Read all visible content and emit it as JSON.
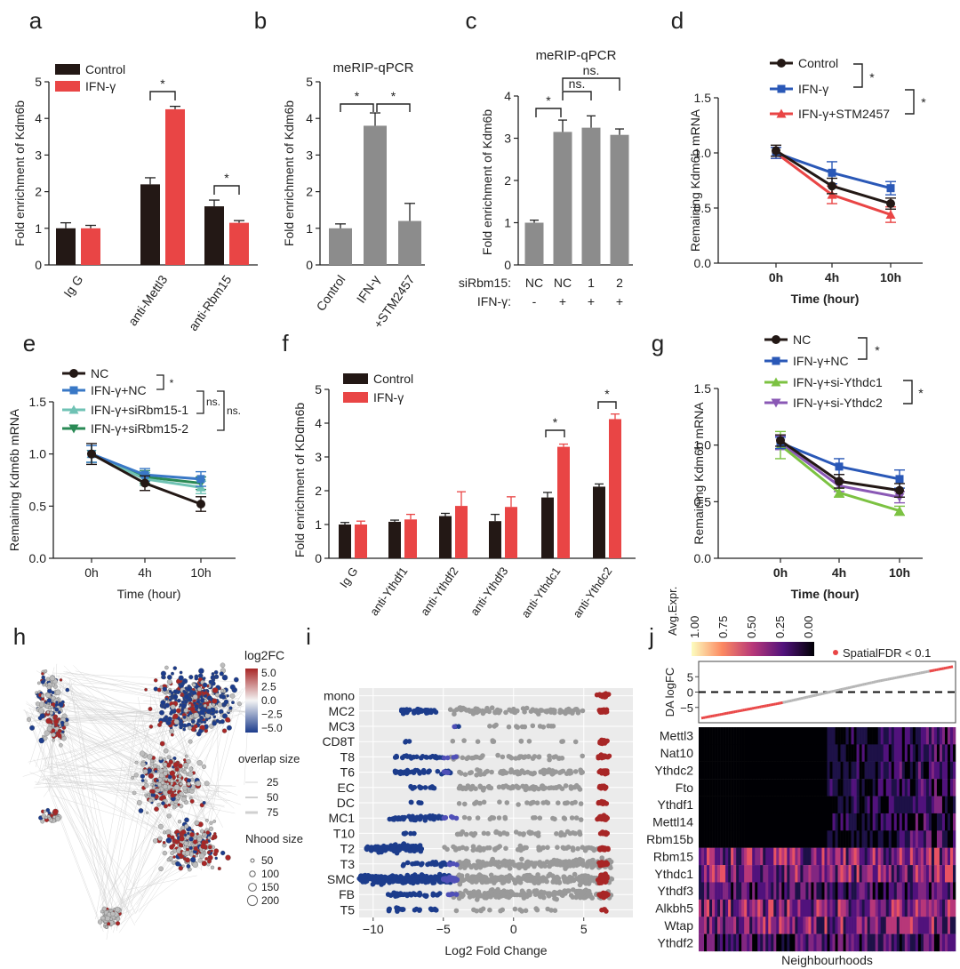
{
  "colors": {
    "black": "#231815",
    "red": "#e94545",
    "gray": "#8c8c8c",
    "blue": "#2a58b7",
    "lightblue": "#3978c6",
    "teal": "#6fc2b4",
    "green": "#2a8a55",
    "lime": "#7cc242",
    "purple": "#8a58b5",
    "dred": "#a82626",
    "dblue": "#1c3c8c"
  },
  "chart_data": [
    {
      "id": "a",
      "panel_label": "a",
      "type": "bar",
      "title": "",
      "ylabel": "Fold enrichment of Kdm6b",
      "ylim": [
        0,
        5
      ],
      "yticks": [
        "0",
        "1",
        "2",
        "3",
        "4",
        "5"
      ],
      "categories": [
        "Ig G",
        "anti-Mettl3",
        "anti-Rbm15"
      ],
      "series": [
        {
          "name": "Control",
          "values": [
            1.0,
            2.2,
            1.6
          ],
          "errors": [
            0.15,
            0.18,
            0.17
          ]
        },
        {
          "name": "IFN-γ",
          "values": [
            1.0,
            4.25,
            1.15
          ],
          "errors": [
            0.08,
            0.08,
            0.06
          ]
        }
      ],
      "sig": [
        "*",
        "*"
      ]
    },
    {
      "id": "b",
      "panel_label": "b",
      "type": "bar",
      "title": "meRIP-qPCR",
      "ylabel": "Fold enrichment of Kdm6b",
      "ylim": [
        0,
        5
      ],
      "yticks": [
        "0",
        "1",
        "2",
        "3",
        "4",
        "5"
      ],
      "categories": [
        "Control",
        "IFN-γ",
        "+STM2457"
      ],
      "values": [
        1.0,
        3.8,
        1.2
      ],
      "errors": [
        0.12,
        0.35,
        0.48
      ],
      "sig": [
        "*",
        "*"
      ]
    },
    {
      "id": "c",
      "panel_label": "c",
      "type": "bar",
      "title": "meRIP-qPCR",
      "ylabel": "Fold enrichment of Kdm6b",
      "ylim": [
        0,
        4
      ],
      "yticks": [
        "0",
        "1",
        "2",
        "3",
        "4"
      ],
      "categories": [
        "NC",
        "NC",
        "1",
        "2"
      ],
      "values": [
        1.0,
        3.15,
        3.25,
        3.08
      ],
      "errors": [
        0.06,
        0.28,
        0.28,
        0.14
      ],
      "row1_label": "siRbm15:",
      "row2_label": "IFN-γ:",
      "row2": [
        "-",
        "+",
        "+",
        "+"
      ],
      "sig": [
        "*",
        "ns.",
        "ns."
      ]
    },
    {
      "id": "d",
      "panel_label": "d",
      "type": "line",
      "ylabel": "Remaining Kdm6b mRNA",
      "xlabel": "Time (hour)",
      "ylim": [
        0,
        1.5
      ],
      "yticks": [
        "0.0",
        "0.5",
        "1.0",
        "1.5"
      ],
      "x": [
        "0h",
        "4h",
        "10h"
      ],
      "series": [
        {
          "name": "Control",
          "values": [
            1.02,
            0.7,
            0.54
          ],
          "errors": [
            0.05,
            0.07,
            0.05
          ]
        },
        {
          "name": "IFN-γ",
          "values": [
            1.0,
            0.82,
            0.68
          ],
          "errors": [
            0.05,
            0.1,
            0.06
          ]
        },
        {
          "name": "IFN-γ+STM2457",
          "values": [
            1.0,
            0.62,
            0.44
          ],
          "errors": [
            0.05,
            0.08,
            0.07
          ]
        }
      ],
      "sig": [
        "*",
        "*"
      ]
    },
    {
      "id": "e",
      "panel_label": "e",
      "type": "line",
      "ylabel": "Remaining Kdm6b mRNA",
      "xlabel": "Time (hour)",
      "ylim": [
        0,
        1.5
      ],
      "yticks": [
        "0.0",
        "0.5",
        "1.0",
        "1.5"
      ],
      "x": [
        "0h",
        "4h",
        "10h"
      ],
      "series": [
        {
          "name": "NC",
          "values": [
            1.0,
            0.72,
            0.52
          ],
          "errors": [
            0.1,
            0.07,
            0.07
          ]
        },
        {
          "name": "IFN-γ+NC",
          "values": [
            1.0,
            0.8,
            0.76
          ],
          "errors": [
            0.08,
            0.06,
            0.07
          ]
        },
        {
          "name": "IFN-γ+siRbm15-1",
          "values": [
            1.0,
            0.76,
            0.68
          ],
          "errors": [
            0.08,
            0.06,
            0.06
          ]
        },
        {
          "name": "IFN-γ+siRbm15-2",
          "values": [
            1.0,
            0.78,
            0.72
          ],
          "errors": [
            0.08,
            0.06,
            0.06
          ]
        }
      ],
      "sig": [
        "*",
        "ns.",
        "ns."
      ]
    },
    {
      "id": "f",
      "panel_label": "f",
      "type": "bar",
      "ylabel": "Fold enrichment of KDdm6b",
      "ylim": [
        0,
        5
      ],
      "yticks": [
        "0",
        "1",
        "2",
        "3",
        "4",
        "5"
      ],
      "categories": [
        "Ig G",
        "anti-Ythdf1",
        "anti-Ythdf2",
        "anti-Ythdf3",
        "anti-Ythdc1",
        "anti-Ythdc2"
      ],
      "series": [
        {
          "name": "Control",
          "values": [
            1.0,
            1.08,
            1.25,
            1.1,
            1.8,
            2.12
          ],
          "errors": [
            0.06,
            0.05,
            0.08,
            0.2,
            0.15,
            0.08
          ]
        },
        {
          "name": "IFN-γ",
          "values": [
            1.0,
            1.15,
            1.55,
            1.52,
            3.3,
            4.12
          ],
          "errors": [
            0.1,
            0.15,
            0.42,
            0.3,
            0.08,
            0.15
          ]
        }
      ],
      "sig": [
        "*",
        "*"
      ]
    },
    {
      "id": "g",
      "panel_label": "g",
      "type": "line",
      "ylabel": "Remaining Kdm6b mRNA",
      "xlabel": "Time (hour)",
      "ylim": [
        0,
        1.5
      ],
      "yticks": [
        "0.0",
        "0.5",
        "1.0",
        "1.5"
      ],
      "x": [
        "0h",
        "4h",
        "10h"
      ],
      "series": [
        {
          "name": "NC",
          "values": [
            1.04,
            0.68,
            0.6
          ],
          "errors": [
            0.05,
            0.06,
            0.06
          ]
        },
        {
          "name": "IFN-γ+NC",
          "values": [
            1.02,
            0.81,
            0.7
          ],
          "errors": [
            0.05,
            0.07,
            0.08
          ]
        },
        {
          "name": "IFN-γ+si-Ythdc1",
          "values": [
            1.0,
            0.58,
            0.42
          ],
          "errors": [
            0.12,
            0.04,
            0.04
          ]
        },
        {
          "name": "IFN-γ+si-Ythdc2",
          "values": [
            1.02,
            0.64,
            0.54
          ],
          "errors": [
            0.06,
            0.05,
            0.05
          ]
        }
      ],
      "sig": [
        "*",
        "*"
      ]
    },
    {
      "id": "h",
      "panel_label": "h",
      "type": "scatter",
      "title": "",
      "legend_title": "log2FC",
      "colorbar_ticks": [
        "5.0",
        "2.5",
        "0.0",
        "−2.5",
        "−5.0"
      ],
      "overlap_title": "overlap size",
      "overlap_levels": [
        "25",
        "50",
        "75"
      ],
      "nhood_title": "Nhood size",
      "nhood_levels": [
        "50",
        "100",
        "150",
        "200"
      ]
    },
    {
      "id": "i",
      "panel_label": "i",
      "type": "scatter",
      "xlabel": "Log2 Fold Change",
      "xlim": [
        -11,
        8.5
      ],
      "xticks": [
        "−10",
        "−5",
        "0",
        "5"
      ],
      "categories": [
        "mono",
        "MC2",
        "MC3",
        "CD8T",
        "T8",
        "T6",
        "EC",
        "DC",
        "MC1",
        "T10",
        "T2",
        "T3",
        "SMC",
        "FB",
        "T5"
      ]
    },
    {
      "id": "j",
      "panel_label": "j",
      "type": "heatmap",
      "ylabel": "DA logFC",
      "xlabel": "Neighbourhoods",
      "ylim": [
        -10,
        10
      ],
      "yticks": [
        "5",
        "0",
        "−5"
      ],
      "colorbar_title": "Avg.Expr.",
      "colorbar_ticks": [
        "1.00",
        "0.75",
        "0.50",
        "0.25",
        "0.00"
      ],
      "legend": "SpatialFDR < 0.1",
      "genes": [
        "Mettl3",
        "Nat10",
        "Ythdc2",
        "Fto",
        "Ythdf1",
        "Mettl14",
        "Rbm15b",
        "Rbm15",
        "Ythdc1",
        "Ythdf3",
        "Alkbh5",
        "Wtap",
        "Ythdf2"
      ]
    }
  ]
}
